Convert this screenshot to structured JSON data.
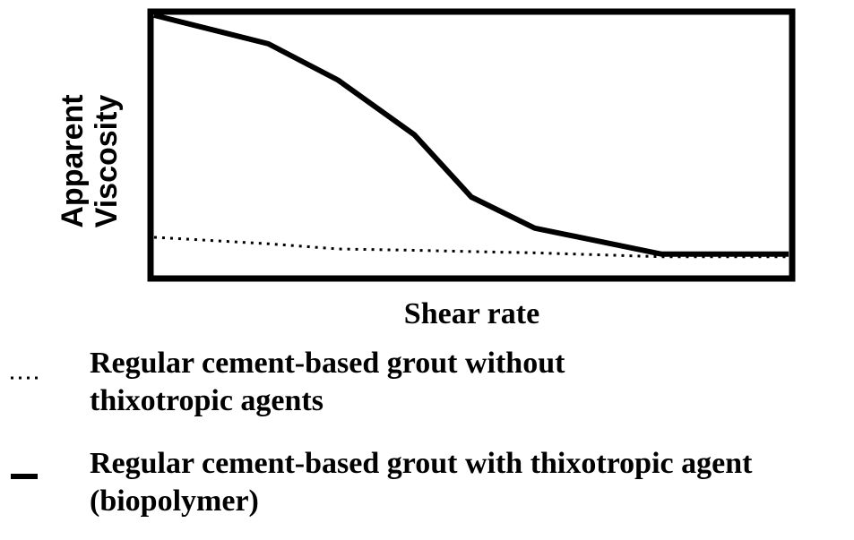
{
  "chart_data": {
    "type": "line",
    "x_label": "Shear rate",
    "y_label": "Apparent Viscosity",
    "x": [
      0,
      18,
      29,
      41,
      50,
      60,
      80,
      100
    ],
    "xlim": [
      0,
      100
    ],
    "ylim": [
      0,
      100
    ],
    "series": [
      {
        "name": "Regular cement-based grout without thixotropic agents",
        "color": "#000000",
        "style": "dotted",
        "values": [
          14.5,
          12,
          10,
          9.5,
          9,
          8.5,
          7,
          7
        ]
      },
      {
        "name": "Regular cement-based grout with thixotropic agent (biopolymer)",
        "color": "#000000",
        "style": "solid",
        "values": [
          100,
          89,
          75,
          54,
          30,
          18,
          8,
          8
        ]
      }
    ]
  }
}
